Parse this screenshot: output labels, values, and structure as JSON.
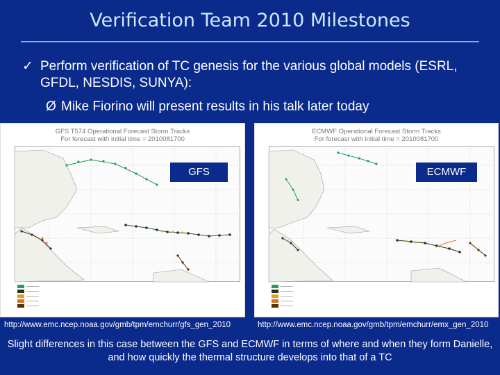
{
  "slide": {
    "title": "Verification Team 2010 Milestones",
    "bullet_mark": "✓",
    "bullet_text": "Perform verification of TC genesis for the various global models (ESRL, GFDL, NESDIS, SUNYA):",
    "sub_mark": "Ø",
    "sub_text": "Mike Fiorino will present results in his talk later today",
    "footer": "Slight differences in this case between the GFS and ECMWF in terms of where and when they form Danielle, and how quickly the thermal structure develops into that of a TC"
  },
  "maps": {
    "gfs": {
      "label": "GFS",
      "header_line1": "GFS T574 Operational Forecast Storm Tracks",
      "header_line2": "For forecast with initial time = 2010081700",
      "url": "http://www.emc.ncep.noaa.gov/gmb/tpm/emchurr/gfs_gen_2010"
    },
    "ecmwf": {
      "label": "ECMWF",
      "header_line1": "ECMWF Operational Forecast Storm Tracks",
      "header_line2": "For forecast with initial time = 2010081700",
      "url": "http://www.emc.ncep.noaa.gov/gmb/tpm/emchurr/emx_gen_2010"
    }
  },
  "colors": {
    "background": "#0a2a8c",
    "title": "#cfe8ff",
    "rule": "#7fb0e8",
    "text": "#ffffff"
  }
}
